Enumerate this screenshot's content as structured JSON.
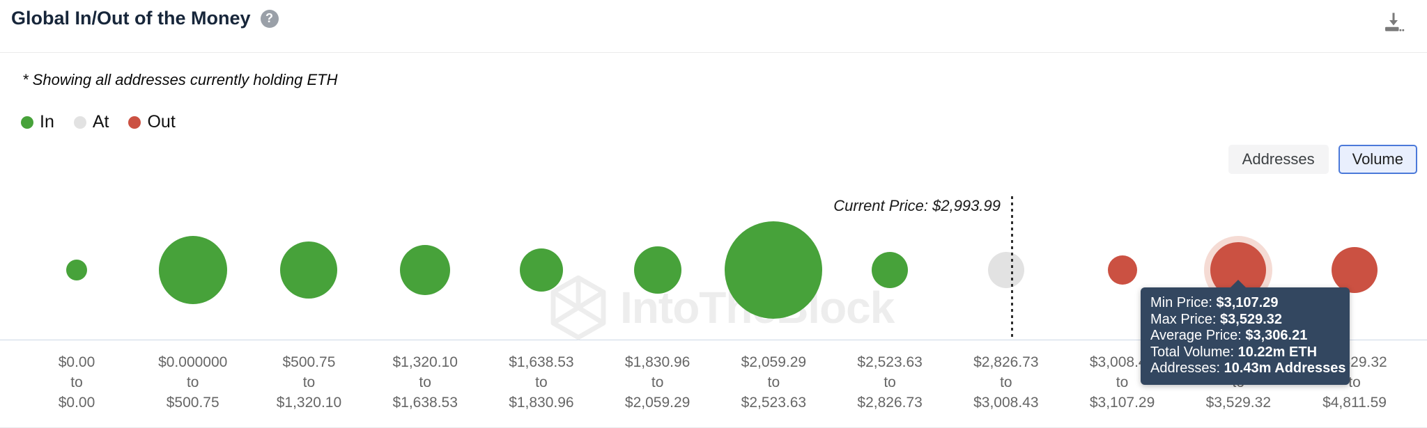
{
  "header": {
    "title": "Global In/Out of the Money",
    "help_icon": "?",
    "download_icon": "download-chart"
  },
  "subtitle": "* Showing all addresses currently holding ETH",
  "legend": [
    {
      "label": "In",
      "color": "#47a23a"
    },
    {
      "label": "At",
      "color": "#e2e2e2"
    },
    {
      "label": "Out",
      "color": "#cb5142"
    }
  ],
  "toggle": {
    "options": [
      "Addresses",
      "Volume"
    ],
    "selected": "Volume"
  },
  "watermark": "IntoTheBlock",
  "tooltip": {
    "rows": [
      {
        "label": "Min Price: ",
        "value": "$3,107.29"
      },
      {
        "label": "Max Price: ",
        "value": "$3,529.32"
      },
      {
        "label": "Average Price: ",
        "value": "$3,306.21"
      },
      {
        "label": "Total Volume: ",
        "value": "10.22m ETH"
      },
      {
        "label": "Addresses: ",
        "value": "10.43m Addresses"
      }
    ]
  },
  "chart_data": {
    "type": "bubble",
    "title": "Global In/Out of the Money",
    "asset": "ETH",
    "legend_position": "top-left",
    "grid": false,
    "current_price": {
      "label": "Current Price: $2,993.99",
      "value": 2993.99
    },
    "x_tick_separator": "to",
    "colors": {
      "in": "#47a23a",
      "at": "#e2e2e2",
      "out": "#cb5142",
      "halo": "#f5dbd4"
    },
    "selected_index": 10,
    "selected_bucket_details": {
      "min_price": "$3,107.29",
      "max_price": "$3,529.32",
      "average_price": "$3,306.21",
      "total_volume": "10.22m ETH",
      "addresses": "10.43m Addresses"
    },
    "buckets": [
      {
        "min": "$0.00",
        "max": "$0.00",
        "status": "in",
        "radius_px": 15
      },
      {
        "min": "$0.000000",
        "max": "$500.75",
        "status": "in",
        "radius_px": 49
      },
      {
        "min": "$500.75",
        "max": "$1,320.10",
        "status": "in",
        "radius_px": 41
      },
      {
        "min": "$1,320.10",
        "max": "$1,638.53",
        "status": "in",
        "radius_px": 36
      },
      {
        "min": "$1,638.53",
        "max": "$1,830.96",
        "status": "in",
        "radius_px": 31
      },
      {
        "min": "$1,830.96",
        "max": "$2,059.29",
        "status": "in",
        "radius_px": 34
      },
      {
        "min": "$2,059.29",
        "max": "$2,523.63",
        "status": "in",
        "radius_px": 70
      },
      {
        "min": "$2,523.63",
        "max": "$2,826.73",
        "status": "in",
        "radius_px": 26
      },
      {
        "min": "$2,826.73",
        "max": "$3,008.43",
        "status": "at",
        "radius_px": 26
      },
      {
        "min": "$3,008.43",
        "max": "$3,107.29",
        "status": "out",
        "radius_px": 21
      },
      {
        "min": "$3,107.29",
        "max": "$3,529.32",
        "status": "out",
        "radius_px": 40
      },
      {
        "min": "$3,529.32",
        "max": "$4,811.59",
        "status": "out",
        "radius_px": 33
      }
    ]
  }
}
